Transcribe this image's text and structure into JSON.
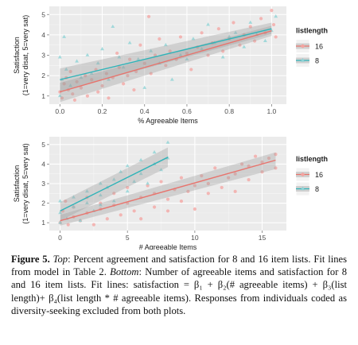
{
  "chart_data": [
    {
      "type": "scatter",
      "title": "",
      "xlabel": "% Agreeable Items",
      "ylabel": "Satisfaction",
      "ylabel2": "(1=very disat, 5=very sat)",
      "xlim": [
        -0.05,
        1.07
      ],
      "ylim": [
        0.6,
        5.4
      ],
      "xticks": [
        "0.0",
        "0.2",
        "0.4",
        "0.6",
        "0.8",
        "1.0"
      ],
      "xtick_values": [
        0,
        0.2,
        0.4,
        0.6,
        0.8,
        1.0
      ],
      "yticks": [
        "1",
        "2",
        "3",
        "4",
        "5"
      ],
      "ytick_values": [
        1,
        2,
        3,
        4,
        5
      ],
      "grid": true,
      "legend": {
        "title": "listlength",
        "placement": "right",
        "entries": [
          {
            "label": "16",
            "marker": "circle",
            "color": "#f4a3a0"
          },
          {
            "label": "8",
            "marker": "triangle",
            "color": "#8fd3d6"
          }
        ]
      },
      "series": [
        {
          "name": "16",
          "marker": "circle",
          "color": "#f4a3a0",
          "fit": {
            "x": [
              0.0,
              1.0
            ],
            "y": [
              1.2,
              4.2
            ],
            "band_lo": [
              0.7,
              3.95
            ],
            "band_hi": [
              1.65,
              4.45
            ],
            "color": "#e8736c"
          },
          "points": [
            [
              0.0,
              1.2
            ],
            [
              0.01,
              0.9
            ],
            [
              0.02,
              1.6
            ],
            [
              0.03,
              1.9
            ],
            [
              0.04,
              1.3
            ],
            [
              0.05,
              2.2
            ],
            [
              0.06,
              1.1
            ],
            [
              0.07,
              0.8
            ],
            [
              0.08,
              1.7
            ],
            [
              0.1,
              1.4
            ],
            [
              0.12,
              2.0
            ],
            [
              0.13,
              1.0
            ],
            [
              0.15,
              1.8
            ],
            [
              0.17,
              2.3
            ],
            [
              0.18,
              1.2
            ],
            [
              0.2,
              1.5
            ],
            [
              0.22,
              2.1
            ],
            [
              0.23,
              0.9
            ],
            [
              0.25,
              1.9
            ],
            [
              0.27,
              3.1
            ],
            [
              0.28,
              2.4
            ],
            [
              0.3,
              1.6
            ],
            [
              0.32,
              2.0
            ],
            [
              0.33,
              2.8
            ],
            [
              0.35,
              1.3
            ],
            [
              0.36,
              2.2
            ],
            [
              0.38,
              3.5
            ],
            [
              0.4,
              2.6
            ],
            [
              0.42,
              4.9
            ],
            [
              0.43,
              2.1
            ],
            [
              0.45,
              3.0
            ],
            [
              0.47,
              3.8
            ],
            [
              0.5,
              2.5
            ],
            [
              0.52,
              3.2
            ],
            [
              0.55,
              2.8
            ],
            [
              0.57,
              3.9
            ],
            [
              0.6,
              3.1
            ],
            [
              0.62,
              2.3
            ],
            [
              0.65,
              3.4
            ],
            [
              0.67,
              4.1
            ],
            [
              0.7,
              3.0
            ],
            [
              0.72,
              3.6
            ],
            [
              0.75,
              4.3
            ],
            [
              0.77,
              3.2
            ],
            [
              0.8,
              3.8
            ],
            [
              0.82,
              4.6
            ],
            [
              0.85,
              3.5
            ],
            [
              0.87,
              4.0
            ],
            [
              0.9,
              4.4
            ],
            [
              0.92,
              3.7
            ],
            [
              0.95,
              4.8
            ],
            [
              0.97,
              4.1
            ],
            [
              1.0,
              5.2
            ],
            [
              1.01,
              4.5
            ],
            [
              1.02,
              3.9
            ]
          ]
        },
        {
          "name": "8",
          "marker": "triangle",
          "color": "#8fd3d6",
          "fit": {
            "x": [
              0.0,
              1.0
            ],
            "y": [
              1.8,
              4.3
            ],
            "band_lo": [
              1.2,
              4.05
            ],
            "band_hi": [
              2.35,
              4.6
            ],
            "color": "#2fb3b8"
          },
          "points": [
            [
              0.0,
              1.0
            ],
            [
              0.0,
              2.9
            ],
            [
              0.01,
              1.8
            ],
            [
              0.02,
              3.9
            ],
            [
              0.03,
              2.3
            ],
            [
              0.05,
              1.5
            ],
            [
              0.08,
              2.7
            ],
            [
              0.1,
              1.9
            ],
            [
              0.13,
              3.0
            ],
            [
              0.15,
              2.1
            ],
            [
              0.18,
              2.6
            ],
            [
              0.2,
              3.3
            ],
            [
              0.23,
              1.8
            ],
            [
              0.25,
              4.4
            ],
            [
              0.28,
              2.9
            ],
            [
              0.3,
              2.4
            ],
            [
              0.33,
              3.6
            ],
            [
              0.37,
              2.8
            ],
            [
              0.4,
              1.4
            ],
            [
              0.43,
              3.2
            ],
            [
              0.47,
              2.6
            ],
            [
              0.5,
              3.5
            ],
            [
              0.53,
              1.8
            ],
            [
              0.57,
              3.0
            ],
            [
              0.6,
              2.8
            ],
            [
              0.63,
              3.8
            ],
            [
              0.67,
              3.3
            ],
            [
              0.7,
              4.5
            ],
            [
              0.73,
              3.6
            ],
            [
              0.77,
              2.9
            ],
            [
              0.8,
              3.9
            ],
            [
              0.83,
              4.1
            ],
            [
              0.87,
              3.4
            ],
            [
              0.9,
              4.6
            ],
            [
              0.93,
              4.0
            ],
            [
              0.97,
              3.7
            ],
            [
              1.0,
              4.2
            ],
            [
              1.02,
              4.9
            ]
          ]
        }
      ]
    },
    {
      "type": "scatter",
      "title": "",
      "xlabel": "# Agreeable Items",
      "ylabel": "Satisfaction",
      "ylabel2": "(1=very disat, 5=very sat)",
      "xlim": [
        -0.8,
        16.8
      ],
      "ylim": [
        0.6,
        5.4
      ],
      "xticks": [
        "0",
        "5",
        "10",
        "15"
      ],
      "xtick_values": [
        0,
        5,
        10,
        15
      ],
      "yticks": [
        "1",
        "2",
        "3",
        "4",
        "5"
      ],
      "ytick_values": [
        1,
        2,
        3,
        4,
        5
      ],
      "grid": true,
      "legend": {
        "title": "listlength",
        "placement": "right",
        "entries": [
          {
            "label": "16",
            "marker": "circle",
            "color": "#f4a3a0"
          },
          {
            "label": "8",
            "marker": "triangle",
            "color": "#8fd3d6"
          }
        ]
      },
      "series": [
        {
          "name": "16",
          "marker": "circle",
          "color": "#f4a3a0",
          "fit": {
            "x": [
              0,
              16
            ],
            "y": [
              1.1,
              4.2
            ],
            "band_lo": [
              0.85,
              3.75
            ],
            "band_hi": [
              1.4,
              4.6
            ],
            "color": "#e8736c"
          },
          "points": [
            [
              0,
              1.0
            ],
            [
              0.2,
              1.6
            ],
            [
              0.4,
              2.1
            ],
            [
              0.6,
              0.9
            ],
            [
              1,
              1.3
            ],
            [
              1,
              1.8
            ],
            [
              1.5,
              1.1
            ],
            [
              2,
              1.5
            ],
            [
              2,
              2.3
            ],
            [
              2.5,
              0.9
            ],
            [
              3,
              1.7
            ],
            [
              3,
              2.0
            ],
            [
              3.5,
              1.2
            ],
            [
              4,
              1.9
            ],
            [
              4,
              2.5
            ],
            [
              4.5,
              1.4
            ],
            [
              5,
              2.0
            ],
            [
              5,
              2.8
            ],
            [
              5.5,
              1.6
            ],
            [
              6,
              2.3
            ],
            [
              6,
              1.2
            ],
            [
              6.5,
              2.9
            ],
            [
              7,
              1.8
            ],
            [
              7,
              2.5
            ],
            [
              7.5,
              3.1
            ],
            [
              8,
              2.2
            ],
            [
              8,
              1.6
            ],
            [
              8.5,
              2.7
            ],
            [
              9,
              3.3
            ],
            [
              9,
              2.1
            ],
            [
              9.5,
              2.6
            ],
            [
              10,
              2.9
            ],
            [
              10,
              1.7
            ],
            [
              10.5,
              3.4
            ],
            [
              11,
              2.5
            ],
            [
              11,
              3.0
            ],
            [
              11.5,
              3.8
            ],
            [
              12,
              2.8
            ],
            [
              12.5,
              3.3
            ],
            [
              13,
              3.5
            ],
            [
              13,
              2.6
            ],
            [
              13.5,
              4.0
            ],
            [
              14,
              3.2
            ],
            [
              14,
              3.9
            ],
            [
              14.5,
              4.4
            ],
            [
              15,
              3.6
            ],
            [
              15,
              4.1
            ],
            [
              15.5,
              4.3
            ],
            [
              16,
              3.8
            ],
            [
              16,
              4.5
            ]
          ]
        },
        {
          "name": "8",
          "marker": "triangle",
          "color": "#8fd3d6",
          "fit": {
            "x": [
              0,
              8
            ],
            "y": [
              1.6,
              4.35
            ],
            "band_lo": [
              1.1,
              3.85
            ],
            "band_hi": [
              2.05,
              4.85
            ],
            "color": "#2fb3b8"
          },
          "points": [
            [
              0,
              1.0
            ],
            [
              0,
              1.5
            ],
            [
              0,
              2.1
            ],
            [
              0.5,
              1.2
            ],
            [
              1,
              1.8
            ],
            [
              1,
              2.3
            ],
            [
              1.5,
              1.1
            ],
            [
              2,
              2.0
            ],
            [
              2,
              2.6
            ],
            [
              2.5,
              1.6
            ],
            [
              3,
              2.4
            ],
            [
              3,
              3.0
            ],
            [
              3,
              1.9
            ],
            [
              3.5,
              2.8
            ],
            [
              4,
              3.2
            ],
            [
              4,
              2.1
            ],
            [
              4.5,
              3.6
            ],
            [
              5,
              2.6
            ],
            [
              5,
              3.9
            ],
            [
              5.5,
              3.1
            ],
            [
              6,
              3.5
            ],
            [
              6,
              4.2
            ],
            [
              6.5,
              3.0
            ],
            [
              7,
              4.0
            ],
            [
              7,
              4.6
            ],
            [
              7.5,
              3.7
            ],
            [
              8,
              4.3
            ],
            [
              8,
              5.1
            ]
          ]
        }
      ]
    }
  ],
  "caption": {
    "figure_label": "Figure 5.",
    "top_label": "Top",
    "top_text": ": Percent agreement and satisfaction for 8 and 16 item lists. Fit lines from model in Table 2. ",
    "bottom_label": "Bottom",
    "bottom_text": ": Number of agreeable items and satisfaction for 8 and 16 item lists. Fit lines: satisfaction = β₁ + β₂(# agreeable items) + β₃(list length)+ β₄(list length * # agreeable items). Responses from individuals coded as diversity-seeking excluded from both plots."
  }
}
